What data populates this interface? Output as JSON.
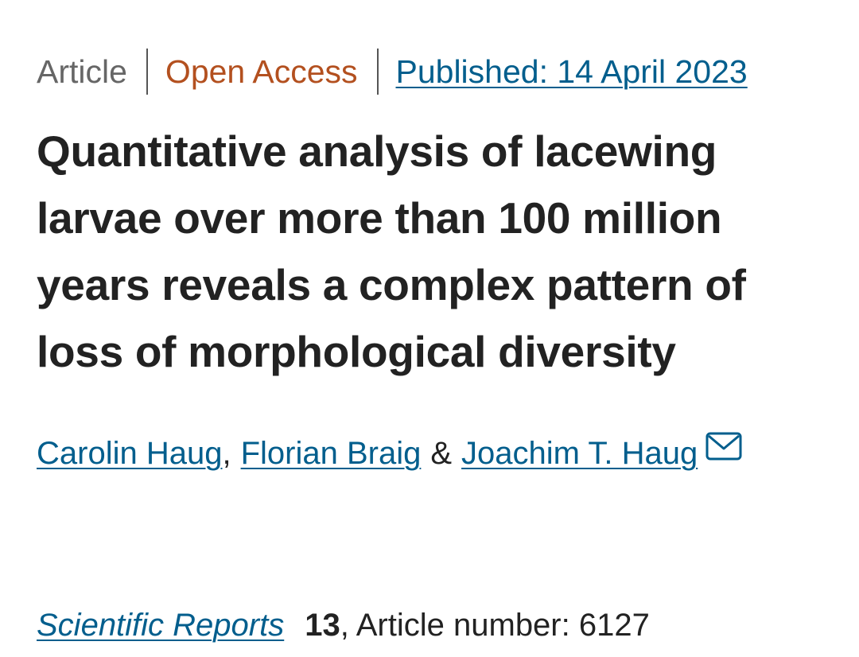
{
  "article_meta": {
    "type": "Article",
    "access": "Open Access",
    "published": "Published: 14 April 2023"
  },
  "title": "Quantitative analysis of lacewing larvae over more than 100 million years reveals a complex pattern of loss of morphological diversity",
  "authors": {
    "items": [
      {
        "name": "Carolin Haug"
      },
      {
        "name": "Florian Braig"
      },
      {
        "name": "Joachim T. Haug"
      }
    ],
    "sep_comma": ",",
    "sep_and": "&",
    "contact_icon": "envelope-icon"
  },
  "citation": {
    "journal": "Scientific Reports",
    "volume": "13",
    "article_number": ", Article number: 6127"
  },
  "colors": {
    "link": "#025e8d",
    "open_access": "#b3501f",
    "meta_gray": "#666666",
    "text": "#222222"
  }
}
